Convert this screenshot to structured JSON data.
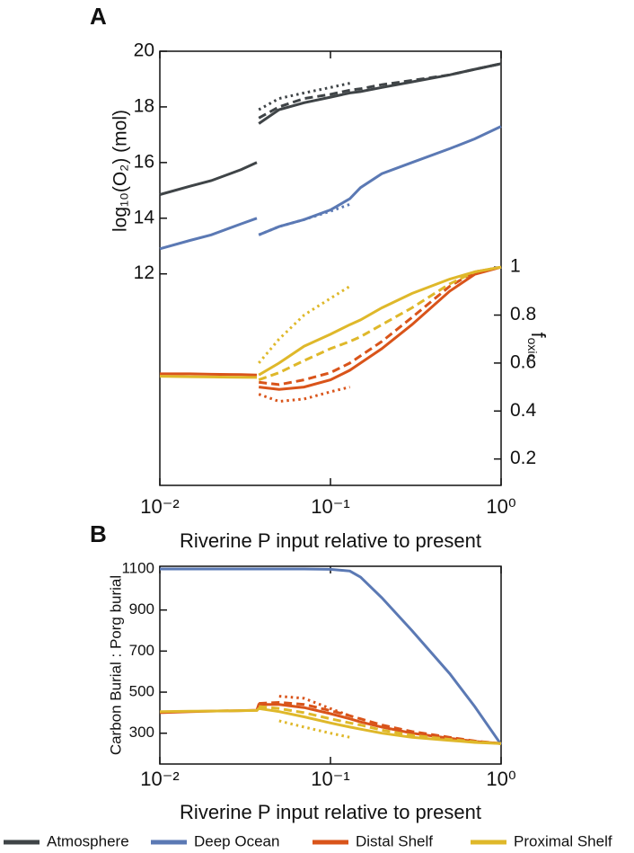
{
  "chart_data": [
    {
      "type": "line",
      "panel": "A",
      "xscale": "log",
      "xlabel": "Riverine P input relative to present",
      "ylabel": "log₁₀(O₂) (mol)",
      "y2label": "f",
      "y2label_sub": "oxic",
      "x": [
        0.01,
        0.015,
        0.02,
        0.03,
        0.037,
        0.0375,
        0.038,
        0.05,
        0.07,
        0.1,
        0.13,
        0.15,
        0.2,
        0.3,
        0.5,
        0.7,
        1
      ],
      "xlim": [
        0.01,
        1
      ],
      "xticks": [
        {
          "value": 0.01,
          "label": "10⁻²"
        },
        {
          "value": 0.1,
          "label": "10⁻¹"
        },
        {
          "value": 1,
          "label": "10⁰"
        }
      ],
      "ylim": [
        4.4,
        20
      ],
      "yticks": [
        12,
        14,
        16,
        18,
        20
      ],
      "y2lim": [
        0.09,
        1.9
      ],
      "y2ticks": [
        0.2,
        0.4,
        0.6,
        0.8,
        1
      ],
      "series": [
        {
          "color": "#3f4447",
          "dash": "solid",
          "values": [
            14.85,
            15.15,
            15.35,
            15.75,
            16.0,
            null,
            17.4,
            17.9,
            18.15,
            18.35,
            18.5,
            18.55,
            18.7,
            18.9,
            19.15,
            19.35,
            19.55
          ]
        },
        {
          "color": "#3f4447",
          "dash": "dashed",
          "values": [
            null,
            null,
            null,
            null,
            null,
            null,
            17.6,
            18.0,
            18.3,
            18.45,
            18.6,
            18.65,
            18.8,
            18.95,
            19.15,
            19.35,
            19.55
          ]
        },
        {
          "color": "#3f4447",
          "dash": "dotted",
          "values": [
            null,
            null,
            null,
            null,
            null,
            null,
            17.9,
            18.3,
            18.5,
            18.7,
            18.85,
            null,
            null,
            null,
            null,
            null,
            null
          ]
        },
        {
          "color": "#5b79b4",
          "dash": "solid",
          "values": [
            12.9,
            13.2,
            13.4,
            13.8,
            14.0,
            null,
            13.4,
            13.7,
            13.95,
            14.3,
            14.7,
            15.1,
            15.6,
            16.0,
            16.5,
            16.85,
            17.3
          ]
        },
        {
          "color": "#5b79b4",
          "dash": "dotted",
          "values": [
            null,
            null,
            null,
            null,
            null,
            null,
            13.4,
            13.7,
            13.95,
            14.25,
            14.5,
            null,
            null,
            null,
            null,
            null,
            null
          ]
        },
        {
          "color": "#d9541a",
          "dash": "solid",
          "axis": "y2",
          "values": [
            0.555,
            0.555,
            0.553,
            0.552,
            0.55,
            null,
            0.5,
            0.49,
            0.5,
            0.53,
            0.57,
            0.6,
            0.66,
            0.76,
            0.9,
            0.97,
            1.0
          ]
        },
        {
          "color": "#d9541a",
          "dash": "dashed",
          "axis": "y2",
          "values": [
            null,
            null,
            null,
            null,
            null,
            null,
            0.52,
            0.51,
            0.53,
            0.56,
            0.6,
            0.63,
            0.69,
            0.79,
            0.92,
            0.98,
            1.0
          ]
        },
        {
          "color": "#d9541a",
          "dash": "dotted",
          "axis": "y2",
          "values": [
            null,
            null,
            null,
            null,
            null,
            null,
            0.47,
            0.44,
            0.45,
            0.48,
            0.5,
            null,
            null,
            null,
            null,
            null,
            null
          ]
        },
        {
          "color": "#dfb82a",
          "dash": "solid",
          "axis": "y2",
          "values": [
            0.545,
            0.543,
            0.542,
            0.541,
            0.54,
            null,
            0.55,
            0.6,
            0.67,
            0.72,
            0.76,
            0.78,
            0.83,
            0.89,
            0.95,
            0.98,
            1.0
          ]
        },
        {
          "color": "#dfb82a",
          "dash": "dashed",
          "axis": "y2",
          "values": [
            null,
            null,
            null,
            null,
            null,
            null,
            0.53,
            0.56,
            0.61,
            0.66,
            0.69,
            0.71,
            0.76,
            0.83,
            0.93,
            0.98,
            1.0
          ]
        },
        {
          "color": "#dfb82a",
          "dash": "dotted",
          "axis": "y2",
          "values": [
            null,
            null,
            null,
            null,
            null,
            null,
            0.6,
            0.7,
            0.8,
            0.87,
            0.92,
            null,
            null,
            null,
            null,
            null,
            null
          ]
        }
      ]
    },
    {
      "type": "line",
      "panel": "B",
      "xscale": "log",
      "xlabel": "Riverine P input relative to present",
      "ylabel": "Carbon Burial : Porg burial",
      "x": [
        0.01,
        0.015,
        0.02,
        0.03,
        0.037,
        0.038,
        0.05,
        0.07,
        0.1,
        0.13,
        0.15,
        0.2,
        0.3,
        0.5,
        0.7,
        1
      ],
      "xlim": [
        0.01,
        1
      ],
      "xticks": [
        {
          "value": 0.01,
          "label": "10⁻²"
        },
        {
          "value": 0.1,
          "label": "10⁻¹"
        },
        {
          "value": 1,
          "label": "10⁰"
        }
      ],
      "ylim": [
        150,
        1113
      ],
      "yticks": [
        300,
        500,
        700,
        900,
        1100
      ],
      "series": [
        {
          "color": "#5b79b4",
          "dash": "solid",
          "values": [
            1100,
            1100,
            1100,
            1100,
            1100,
            1100,
            1100,
            1100,
            1098,
            1090,
            1060,
            960,
            800,
            590,
            430,
            245
          ]
        },
        {
          "color": "#d9541a",
          "dash": "solid",
          "values": [
            400,
            405,
            408,
            410,
            412,
            440,
            440,
            425,
            395,
            370,
            355,
            330,
            300,
            275,
            260,
            250
          ]
        },
        {
          "color": "#d9541a",
          "dash": "dashed",
          "values": [
            null,
            null,
            null,
            null,
            null,
            445,
            450,
            440,
            410,
            385,
            370,
            340,
            308,
            280,
            262,
            250
          ]
        },
        {
          "color": "#d9541a",
          "dash": "dotted",
          "values": [
            null,
            null,
            null,
            null,
            null,
            null,
            480,
            470,
            420,
            385,
            null,
            null,
            null,
            null,
            null,
            null
          ]
        },
        {
          "color": "#dfb82a",
          "dash": "solid",
          "values": [
            405,
            407,
            408,
            410,
            411,
            420,
            405,
            380,
            350,
            330,
            320,
            300,
            280,
            265,
            255,
            250
          ]
        },
        {
          "color": "#dfb82a",
          "dash": "dashed",
          "values": [
            null,
            null,
            null,
            null,
            null,
            430,
            420,
            400,
            370,
            350,
            340,
            315,
            290,
            270,
            258,
            250
          ]
        },
        {
          "color": "#dfb82a",
          "dash": "dotted",
          "values": [
            null,
            null,
            null,
            null,
            null,
            null,
            360,
            330,
            300,
            280,
            null,
            null,
            null,
            null,
            null,
            null
          ]
        }
      ]
    }
  ],
  "legend": [
    {
      "name": "Atmosphere",
      "color": "#3f4447"
    },
    {
      "name": "Deep Ocean",
      "color": "#5b79b4"
    },
    {
      "name": "Distal Shelf",
      "color": "#d9541a"
    },
    {
      "name": "Proximal Shelf",
      "color": "#dfb82a"
    }
  ]
}
